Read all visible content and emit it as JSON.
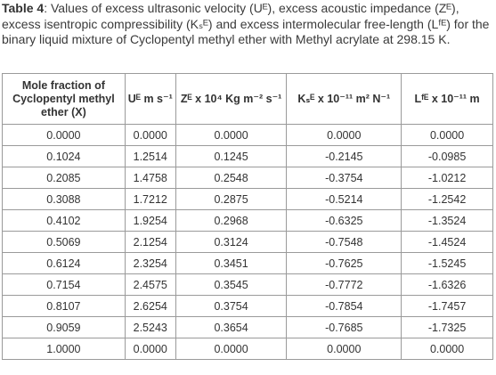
{
  "caption": {
    "bold_label": "Table 4",
    "text": ": Values of excess ultrasonic velocity (Uᴱ), excess acoustic impedance (Zᴱ), excess isentropic compressibility (Kₛᴱ) and excess intermolecular free-length (Lᶠᴱ) for the binary liquid mixture of Cyclopentyl methyl ether with Methyl acrylate at 298.15 K."
  },
  "table": {
    "headers": [
      "Mole fraction of Cyclopentyl methyl ether (X)",
      "Uᴱ m s⁻¹",
      "Zᴱ x 10⁴ Kg m⁻² s⁻¹",
      "Kₛᴱ x 10⁻¹¹ m² N⁻¹",
      "Lᶠᴱ x 10⁻¹¹ m"
    ],
    "rows": [
      [
        "0.0000",
        "0.0000",
        "0.0000",
        "0.0000",
        "0.0000"
      ],
      [
        "0.1024",
        "1.2514",
        "0.1245",
        "-0.2145",
        "-0.0985"
      ],
      [
        "0.2085",
        "1.4758",
        "0.2548",
        "-0.3754",
        "-1.0212"
      ],
      [
        "0.3088",
        "1.7212",
        "0.2875",
        "-0.5214",
        "-1.2542"
      ],
      [
        "0.4102",
        "1.9254",
        "0.2968",
        "-0.6325",
        "-1.3524"
      ],
      [
        "0.5069",
        "2.1254",
        "0.3124",
        "-0.7548",
        "-1.4524"
      ],
      [
        "0.6124",
        "2.3254",
        "0.3451",
        "-0.7625",
        "-1.5245"
      ],
      [
        "0.7154",
        "2.4575",
        "0.3545",
        "-0.7772",
        "-1.6326"
      ],
      [
        "0.8107",
        "2.6254",
        "0.3754",
        "-0.7854",
        "-1.7457"
      ],
      [
        "0.9059",
        "2.5243",
        "0.3654",
        "-0.7685",
        "-1.7325"
      ],
      [
        "1.0000",
        "0.0000",
        "0.0000",
        "0.0000",
        "0.0000"
      ]
    ]
  }
}
